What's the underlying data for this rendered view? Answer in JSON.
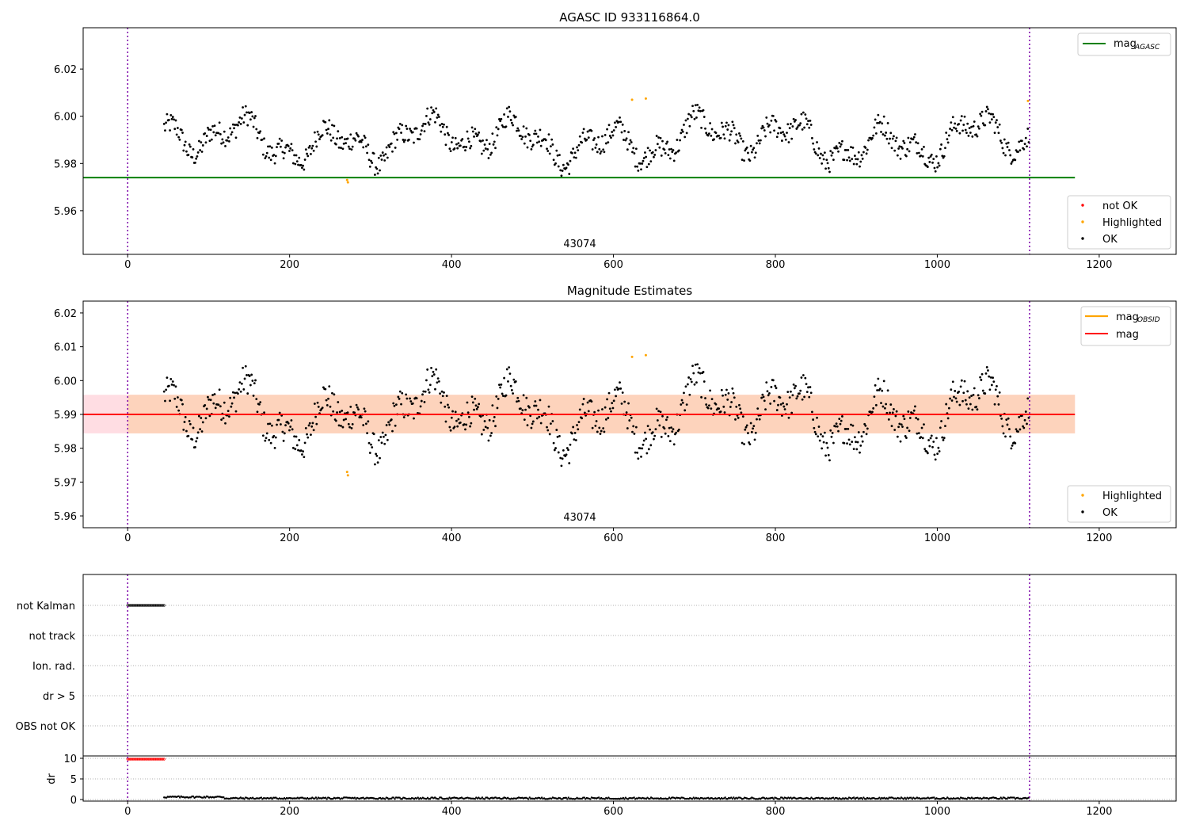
{
  "chart_data": [
    {
      "type": "scatter",
      "title": "AGASC ID 933116864.0",
      "xlim": [
        -55,
        1295
      ],
      "ylim": [
        5.9415,
        6.0375
      ],
      "xticks": [
        "0",
        "200",
        "400",
        "600",
        "800",
        "1000",
        "1200"
      ],
      "yticks": [
        "5.96",
        "5.98",
        "6.00",
        "6.02"
      ],
      "annotation": "43074",
      "mag_agasc": 5.974,
      "obs_range": [
        0,
        1114
      ],
      "points_x_range": [
        45,
        1114
      ],
      "points_y_center": 5.99,
      "highlighted": [
        [
          271,
          5.973
        ],
        [
          272,
          5.972
        ],
        [
          623,
          6.007
        ],
        [
          640,
          6.0075
        ],
        [
          1112,
          6.0065
        ]
      ],
      "legend_lines": [
        {
          "name": "mag",
          "sub": "AGASC",
          "color": "#008000"
        }
      ],
      "legend_points": [
        {
          "name": "not OK",
          "color": "#ff0000"
        },
        {
          "name": "Highlighted",
          "color": "#ffa500"
        },
        {
          "name": "OK",
          "color": "#000000"
        }
      ]
    },
    {
      "type": "scatter",
      "title": "Magnitude Estimates",
      "xlim": [
        -55,
        1295
      ],
      "ylim": [
        5.9565,
        6.0235
      ],
      "xticks": [
        "0",
        "200",
        "400",
        "600",
        "800",
        "1000",
        "1200"
      ],
      "yticks": [
        "5.96",
        "5.97",
        "5.98",
        "5.99",
        "6.00",
        "6.01",
        "6.02"
      ],
      "annotation": "43074",
      "mag": 5.99,
      "band_outer": [
        5.9844,
        5.9958
      ],
      "band_inner": [
        5.9844,
        5.9958
      ],
      "obs_range": [
        0,
        1114
      ],
      "highlighted": [
        [
          271,
          5.973
        ],
        [
          272,
          5.972
        ],
        [
          623,
          6.007
        ],
        [
          640,
          6.0075
        ]
      ],
      "legend_lines": [
        {
          "name": "mag",
          "sub": "OBSID",
          "color": "#ffa500"
        },
        {
          "name": "mag",
          "sub": "",
          "color": "#ff0000"
        }
      ],
      "legend_points": [
        {
          "name": "Highlighted",
          "color": "#ffa500"
        },
        {
          "name": "OK",
          "color": "#000000"
        }
      ]
    },
    {
      "type": "scatter",
      "xlim": [
        -55,
        1295
      ],
      "flag_labels": [
        "not Kalman",
        "not track",
        "Ion. rad.",
        "dr > 5",
        "OBS not OK"
      ],
      "not_kalman_range": [
        0,
        45
      ],
      "dr_ylabel": "dr",
      "dr_yticks": [
        "0",
        "5",
        "10"
      ],
      "dr_ylim": [
        -0.5,
        10.5
      ],
      "dr_high_range": [
        0,
        45
      ],
      "dr_high_value": 9.8,
      "dr_low_range": [
        45,
        1114
      ],
      "dr_low_value": 0.3,
      "xticks": [
        "0",
        "200",
        "400",
        "600",
        "800",
        "1000",
        "1200"
      ]
    }
  ]
}
